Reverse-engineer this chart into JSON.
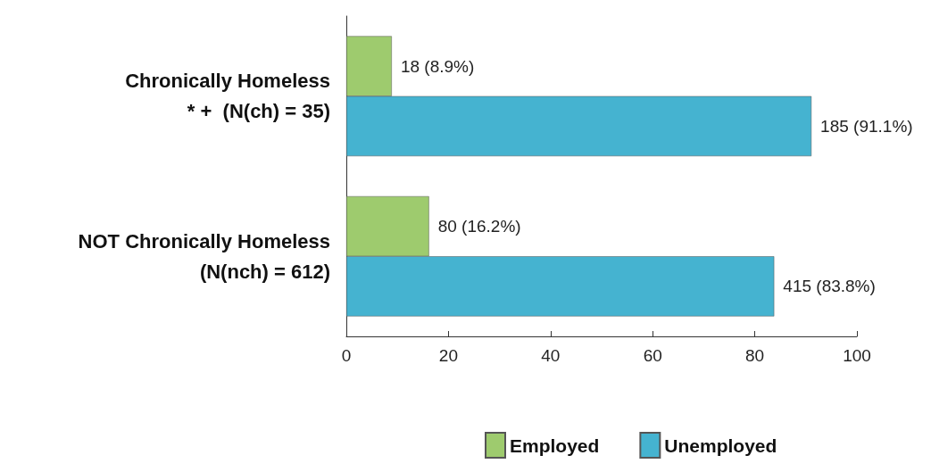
{
  "chart_data": {
    "type": "bar",
    "orientation": "horizontal",
    "categories": [
      "Chronically Homeless\n* +  (N(ch) = 35)",
      "NOT Chronically Homeless\n(N(nch) = 612)"
    ],
    "series": [
      {
        "name": "Employed",
        "color": "#9ecb6e",
        "values": [
          8.9,
          16.2
        ],
        "value_labels": [
          "18 (8.9%)",
          "80 (16.2%)"
        ]
      },
      {
        "name": "Unemployed",
        "color": "#45b3d0",
        "values": [
          91.1,
          83.8
        ],
        "value_labels": [
          "185 (91.1%)",
          "415 (83.8%)"
        ]
      }
    ],
    "xlim": [
      0,
      100
    ],
    "xticks": [
      0,
      20,
      40,
      60,
      80,
      100
    ],
    "grid": false,
    "legend": "bottom"
  }
}
